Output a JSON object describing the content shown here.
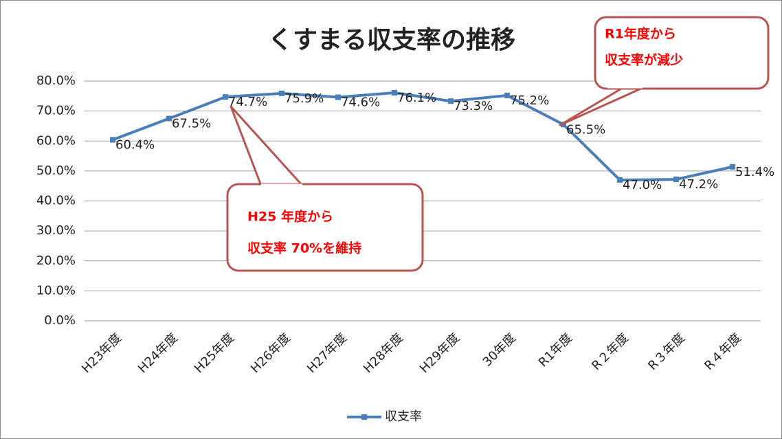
{
  "chart_data": {
    "type": "line",
    "title": "くすまる収支率の推移",
    "categories": [
      "H23年度",
      "H24年度",
      "H25年度",
      "H26年度",
      "H27年度",
      "H28年度",
      "H29年度",
      "30年度",
      "R1年度",
      "R２年度",
      "R３年度",
      "R４年度"
    ],
    "series": [
      {
        "name": "収支率",
        "color": "#4a7ebb",
        "values": [
          60.4,
          67.5,
          74.7,
          75.9,
          74.6,
          76.1,
          73.3,
          75.2,
          65.5,
          47.0,
          47.2,
          51.4
        ],
        "value_labels": [
          "60.4%",
          "67.5%",
          "74.7%",
          "75.9%",
          "74.6%",
          "76.1%",
          "73.3%",
          "75.2%",
          "65.5%",
          "47.0%",
          "47.2%",
          "51.4%"
        ]
      }
    ],
    "ylim": [
      0,
      80
    ],
    "yticks": [
      {
        "value": 0,
        "label": "0.0%"
      },
      {
        "value": 10,
        "label": "10.0%"
      },
      {
        "value": 20,
        "label": "20.0%"
      },
      {
        "value": 30,
        "label": "30.0%"
      },
      {
        "value": 40,
        "label": "40.0%"
      },
      {
        "value": 50,
        "label": "50.0%"
      },
      {
        "value": 60,
        "label": "60.0%"
      },
      {
        "value": 70,
        "label": "70.0%"
      },
      {
        "value": 80,
        "label": "80.0%"
      }
    ],
    "grid": true,
    "legend": "bottom",
    "annotations": [
      {
        "lines": [
          "R1年度から",
          "収支率が減少"
        ]
      },
      {
        "lines": [
          "H25 年度から",
          "収支率 70%を維持"
        ]
      }
    ]
  }
}
